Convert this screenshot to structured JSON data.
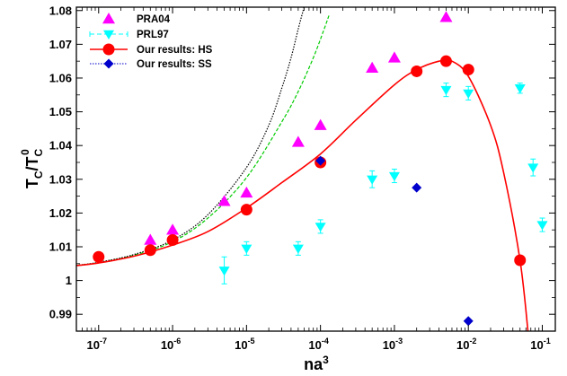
{
  "chart_data": {
    "type": "scatter",
    "xlabel": "na",
    "xlabel_sup": "3",
    "ylabel": "T",
    "ylabel_sub": "C",
    "ylabel_over": "/T",
    "ylabel_over_sub": "C",
    "ylabel_over_sup": "0",
    "xscale": "log",
    "xlim": [
      5e-08,
      0.15
    ],
    "ylim": [
      0.985,
      1.081
    ],
    "x_ticks": [
      1e-07,
      1e-06,
      1e-05,
      0.0001,
      0.001,
      0.01,
      0.1
    ],
    "x_tick_labels": [
      {
        "base": "10",
        "exp": "-7"
      },
      {
        "base": "10",
        "exp": "-6"
      },
      {
        "base": "10",
        "exp": "-5"
      },
      {
        "base": "10",
        "exp": "-4"
      },
      {
        "base": "10",
        "exp": "-3"
      },
      {
        "base": "10",
        "exp": "-2"
      },
      {
        "base": "10",
        "exp": "-1"
      }
    ],
    "y_ticks": [
      0.99,
      1,
      1.01,
      1.02,
      1.03,
      1.04,
      1.05,
      1.06,
      1.07,
      1.08
    ],
    "y_tick_labels": [
      "0.99",
      "1",
      "1.01",
      "1.02",
      "1.03",
      "1.04",
      "1.05",
      "1.06",
      "1.07",
      "1.08"
    ],
    "grid": false,
    "legend_position": "top-left",
    "series": [
      {
        "name": "PRA04",
        "kind": "points",
        "marker": "triangle-up",
        "color": "#ff00ff",
        "points": [
          [
            5e-07,
            1.012
          ],
          [
            1e-06,
            1.015
          ],
          [
            5e-06,
            1.0235
          ],
          [
            1e-05,
            1.026
          ],
          [
            5e-05,
            1.041
          ],
          [
            0.0001,
            1.046
          ],
          [
            0.0005,
            1.063
          ],
          [
            0.001,
            1.066
          ],
          [
            0.005,
            1.078
          ]
        ]
      },
      {
        "name": "PRL97",
        "kind": "points-errorbars",
        "marker": "triangle-down",
        "color": "#00ffff",
        "points": [
          [
            5e-06,
            1.003,
            0.004
          ],
          [
            1e-05,
            1.0095,
            0.002
          ],
          [
            5e-05,
            1.0095,
            0.002
          ],
          [
            0.0001,
            1.016,
            0.002
          ],
          [
            0.0005,
            1.03,
            0.0025
          ],
          [
            0.001,
            1.031,
            0.002
          ],
          [
            0.005,
            1.0565,
            0.002
          ],
          [
            0.01,
            1.0555,
            0.002
          ],
          [
            0.05,
            1.057,
            0.0015
          ],
          [
            0.075,
            1.0335,
            0.0025
          ],
          [
            0.1,
            1.0165,
            0.002
          ]
        ]
      },
      {
        "name": "Our results: HS",
        "kind": "points-line",
        "marker": "circle",
        "color": "#ff0000",
        "line_color": "#ff0000",
        "points": [
          [
            1e-07,
            1.007
          ],
          [
            5e-07,
            1.009
          ],
          [
            1e-06,
            1.012
          ],
          [
            1e-05,
            1.021
          ],
          [
            0.0001,
            1.035
          ],
          [
            0.002,
            1.062
          ],
          [
            0.005,
            1.065
          ],
          [
            0.01,
            1.0625
          ],
          [
            0.05,
            1.006
          ]
        ],
        "curve": [
          [
            5e-08,
            1.0044
          ],
          [
            1e-07,
            1.0052
          ],
          [
            3e-07,
            1.0072
          ],
          [
            1e-06,
            1.0105
          ],
          [
            3e-06,
            1.0145
          ],
          [
            1e-05,
            1.0215
          ],
          [
            3e-05,
            1.029
          ],
          [
            0.0001,
            1.0375
          ],
          [
            0.0003,
            1.0475
          ],
          [
            0.001,
            1.058
          ],
          [
            0.002,
            1.0625
          ],
          [
            0.004,
            1.065
          ],
          [
            0.006,
            1.065
          ],
          [
            0.01,
            1.0605
          ],
          [
            0.02,
            1.046
          ],
          [
            0.03,
            1.032
          ],
          [
            0.05,
            1.006
          ],
          [
            0.065,
            0.9835
          ]
        ]
      },
      {
        "name": "Our results: SS",
        "kind": "points",
        "marker": "diamond",
        "color": "#0000cc",
        "points": [
          [
            0.0001,
            1.0355
          ],
          [
            0.002,
            1.0275
          ],
          [
            0.01,
            0.988
          ]
        ]
      }
    ],
    "extra_curves": [
      {
        "color": "#00cc00",
        "dash": "4,2",
        "points": [
          [
            5e-08,
            1.0045
          ],
          [
            1e-07,
            1.0053
          ],
          [
            3e-07,
            1.0075
          ],
          [
            1e-06,
            1.0115
          ],
          [
            3e-06,
            1.0185
          ],
          [
            1e-05,
            1.0305
          ],
          [
            3e-05,
            1.047
          ],
          [
            5e-05,
            1.056
          ],
          [
            8e-05,
            1.066
          ],
          [
            0.00011,
            1.074
          ],
          [
            0.00013,
            1.0785
          ]
        ]
      },
      {
        "color": "#000000",
        "dash": "1.5,1.5",
        "points": [
          [
            5e-08,
            1.0045
          ],
          [
            1e-07,
            1.0054
          ],
          [
            3e-07,
            1.0077
          ],
          [
            1e-06,
            1.012
          ],
          [
            3e-06,
            1.0195
          ],
          [
            1e-05,
            1.0335
          ],
          [
            2e-05,
            1.046
          ],
          [
            3e-05,
            1.057
          ],
          [
            4e-05,
            1.066
          ],
          [
            5e-05,
            1.0745
          ],
          [
            6e-05,
            1.081
          ]
        ]
      }
    ]
  }
}
